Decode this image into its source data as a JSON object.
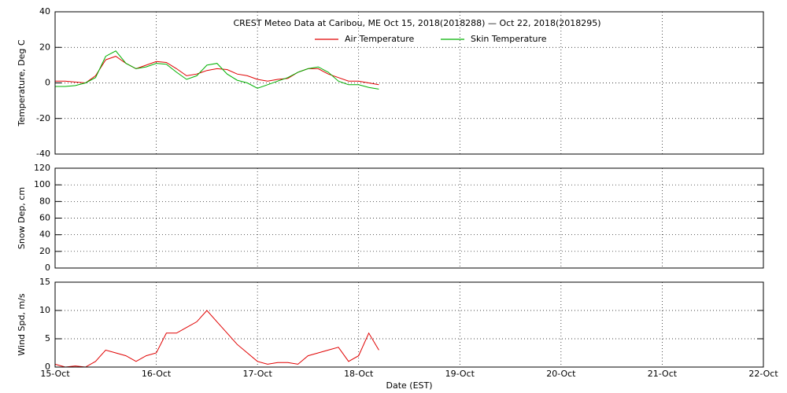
{
  "chart_data": [
    {
      "type": "line",
      "title": "CREST Meteo Data at Caribou, ME   Oct 15, 2018(2018288) — Oct 22, 2018(2018295)",
      "ylabel": "Temperature, Deg C",
      "x": [
        0,
        0.1,
        0.2,
        0.3,
        0.4,
        0.5,
        0.6,
        0.7,
        0.8,
        0.9,
        1.0,
        1.1,
        1.2,
        1.3,
        1.4,
        1.5,
        1.6,
        1.7,
        1.8,
        1.9,
        2.0,
        2.1,
        2.2,
        2.3,
        2.4,
        2.5,
        2.6,
        2.7,
        2.8,
        2.9,
        3.0,
        3.1,
        3.2
      ],
      "series": [
        {
          "name": "Air Temperature",
          "color": "#e00000",
          "values": [
            1,
            1,
            0.5,
            0,
            4,
            13,
            15,
            11,
            8,
            10,
            12,
            11.5,
            8,
            4,
            5,
            7,
            8,
            7.5,
            5,
            4,
            2,
            1,
            2,
            2.5,
            6,
            8,
            8,
            5,
            3,
            1,
            1,
            0,
            -1
          ]
        },
        {
          "name": "Skin Temperature",
          "color": "#00b000",
          "values": [
            -2,
            -2,
            -1.5,
            0,
            3,
            15,
            18,
            11,
            8,
            9,
            11,
            10.5,
            6,
            2,
            4,
            10,
            11,
            5,
            1.5,
            0,
            -3,
            -1,
            1,
            3,
            6,
            8,
            9,
            6,
            1,
            -1,
            -1,
            -2.5,
            -3.5
          ]
        }
      ],
      "ylim": [
        -40,
        40
      ],
      "yticks": [
        -40,
        -20,
        0,
        20,
        40
      ],
      "grid": true
    },
    {
      "type": "line",
      "ylabel": "Snow Dep, cm",
      "ylim": [
        0,
        120
      ],
      "yticks": [
        0,
        20,
        40,
        60,
        80,
        100,
        120
      ],
      "grid": true
    },
    {
      "type": "line",
      "ylabel": "Wind Spd, m/s",
      "xlabel": "Date (EST)",
      "x": [
        0,
        0.1,
        0.2,
        0.3,
        0.4,
        0.5,
        0.6,
        0.7,
        0.8,
        0.9,
        1.0,
        1.1,
        1.2,
        1.3,
        1.4,
        1.5,
        1.6,
        1.7,
        1.8,
        1.9,
        2.0,
        2.1,
        2.2,
        2.3,
        2.4,
        2.5,
        2.6,
        2.7,
        2.8,
        2.9,
        3.0,
        3.1,
        3.2
      ],
      "values": [
        0.5,
        0,
        0.2,
        0,
        1,
        3,
        2.5,
        2,
        1,
        2,
        2.5,
        6,
        6,
        7,
        8,
        10,
        8,
        6,
        4,
        2.5,
        1,
        0.5,
        0.8,
        0.8,
        0.5,
        2,
        2.5,
        3,
        3.5,
        1,
        2,
        6,
        3
      ],
      "color": "#e00000",
      "xlim": [
        0,
        7
      ],
      "xticks": [
        {
          "value": 0,
          "label": "15-Oct"
        },
        {
          "value": 1,
          "label": "16-Oct"
        },
        {
          "value": 2,
          "label": "17-Oct"
        },
        {
          "value": 3,
          "label": "18-Oct"
        },
        {
          "value": 4,
          "label": "19-Oct"
        },
        {
          "value": 5,
          "label": "20-Oct"
        },
        {
          "value": 6,
          "label": "21-Oct"
        },
        {
          "value": 7,
          "label": "22-Oct"
        }
      ],
      "ylim": [
        0,
        15
      ],
      "yticks": [
        0,
        5,
        10,
        15
      ],
      "grid": true
    }
  ]
}
